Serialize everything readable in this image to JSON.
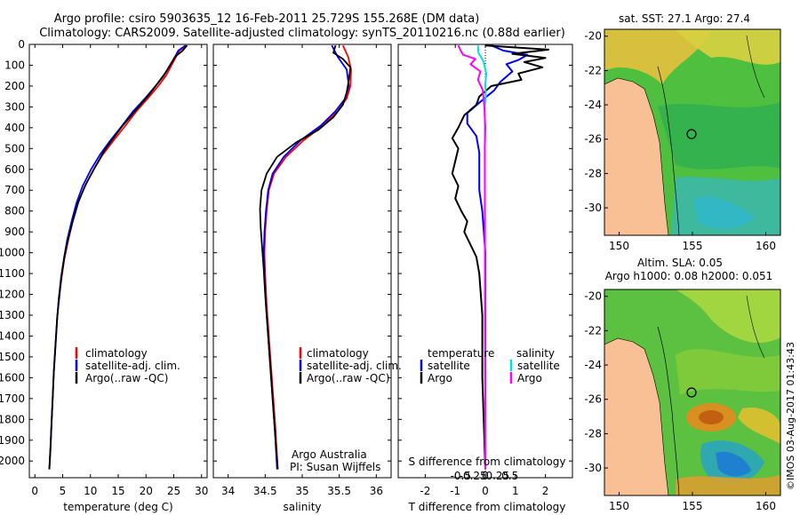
{
  "header": {
    "line1": "Argo profile: csiro 5903635_12 16-Feb-2011 25.729S 155.268E (DM data)",
    "line2": "Climatology: CARS2009. Satellite-adjusted climatology: synTS_20110216.nc (0.88d earlier)"
  },
  "colors": {
    "climatology": "#ff0000",
    "satellite": "#0000ff",
    "argo": "#000000",
    "sal_sat": "#00e0e0",
    "sal_argo": "#ff00ff",
    "land": "#f9c095"
  },
  "chart_data": [
    {
      "type": "line",
      "id": "temperature",
      "xlabel": "temperature (deg C)",
      "ylabel": "",
      "xlim": [
        -1,
        31
      ],
      "ylim": [
        2080,
        0
      ],
      "xticks": [
        "0",
        "5",
        "10",
        "15",
        "20",
        "25",
        "30"
      ],
      "xtick_values": [
        0,
        5,
        10,
        15,
        20,
        25,
        30
      ],
      "yticks": [
        "0",
        "100",
        "200",
        "300",
        "400",
        "500",
        "600",
        "700",
        "800",
        "900",
        "1000",
        "1100",
        "1200",
        "1300",
        "1400",
        "1500",
        "1600",
        "1700",
        "1800",
        "1900",
        "2000"
      ],
      "ytick_values": [
        0,
        100,
        200,
        300,
        400,
        500,
        600,
        700,
        800,
        900,
        1000,
        1100,
        1200,
        1300,
        1400,
        1500,
        1600,
        1700,
        1800,
        1900,
        2000
      ],
      "legend": [
        "climatology",
        "satellite-adj. clim.",
        "Argo(..raw -QC)"
      ],
      "series": [
        {
          "name": "climatology",
          "color": "#ff0000",
          "points": [
            [
              27.3,
              5
            ],
            [
              26,
              30
            ],
            [
              25.4,
              60
            ],
            [
              24.6,
              100
            ],
            [
              23.6,
              150
            ],
            [
              22.2,
              200
            ],
            [
              20.3,
              260
            ],
            [
              18.3,
              320
            ],
            [
              16.3,
              390
            ],
            [
              14.2,
              460
            ],
            [
              12.2,
              530
            ],
            [
              10.6,
              600
            ],
            [
              9,
              680
            ],
            [
              7.8,
              760
            ],
            [
              6.8,
              850
            ],
            [
              6,
              940
            ],
            [
              5.3,
              1030
            ],
            [
              4.8,
              1120
            ],
            [
              4.3,
              1220
            ],
            [
              4,
              1320
            ],
            [
              3.7,
              1450
            ],
            [
              3.4,
              1580
            ],
            [
              3.2,
              1700
            ],
            [
              3,
              1820
            ],
            [
              2.8,
              1940
            ],
            [
              2.6,
              2040
            ]
          ]
        },
        {
          "name": "satellite",
          "color": "#0000ff",
          "points": [
            [
              27.1,
              5
            ],
            [
              25.8,
              30
            ],
            [
              25.2,
              60
            ],
            [
              24.3,
              100
            ],
            [
              23.2,
              150
            ],
            [
              21.7,
              200
            ],
            [
              19.8,
              260
            ],
            [
              17.7,
              320
            ],
            [
              15.7,
              390
            ],
            [
              13.6,
              460
            ],
            [
              11.7,
              530
            ],
            [
              10.1,
              600
            ],
            [
              8.6,
              680
            ],
            [
              7.5,
              760
            ],
            [
              6.6,
              850
            ],
            [
              5.8,
              940
            ],
            [
              5.2,
              1030
            ],
            [
              4.7,
              1120
            ],
            [
              4.3,
              1220
            ],
            [
              4,
              1320
            ],
            [
              3.7,
              1450
            ],
            [
              3.4,
              1580
            ],
            [
              3.2,
              1700
            ],
            [
              3,
              1820
            ],
            [
              2.8,
              1940
            ],
            [
              2.6,
              2040
            ]
          ]
        },
        {
          "name": "Argo",
          "color": "#000000",
          "points": [
            [
              27.4,
              5
            ],
            [
              26.6,
              30
            ],
            [
              25.2,
              60
            ],
            [
              24.6,
              90
            ],
            [
              23.4,
              140
            ],
            [
              22.3,
              180
            ],
            [
              20.6,
              240
            ],
            [
              19,
              290
            ],
            [
              17.4,
              340
            ],
            [
              15.8,
              390
            ],
            [
              14.4,
              440
            ],
            [
              12.5,
              510
            ],
            [
              10.8,
              590
            ],
            [
              9.2,
              670
            ],
            [
              7.9,
              750
            ],
            [
              6.9,
              840
            ],
            [
              6,
              930
            ],
            [
              5.3,
              1020
            ],
            [
              4.8,
              1110
            ],
            [
              4.4,
              1210
            ],
            [
              4,
              1310
            ],
            [
              3.7,
              1440
            ],
            [
              3.4,
              1570
            ],
            [
              3.2,
              1690
            ],
            [
              3,
              1810
            ],
            [
              2.8,
              1930
            ],
            [
              2.6,
              2040
            ]
          ]
        }
      ]
    },
    {
      "type": "line",
      "id": "salinity",
      "xlabel": "salinity",
      "xlim": [
        33.8,
        36.2
      ],
      "ylim": [
        2080,
        0
      ],
      "xticks": [
        "34",
        "34.5",
        "35",
        "35.5",
        "36"
      ],
      "xtick_values": [
        34,
        34.5,
        35,
        35.5,
        36
      ],
      "legend": [
        "climatology",
        "satellite-adj. clim.",
        "Argo(..raw -QC)"
      ],
      "annotations": [
        "Argo Australia",
        "PI: Susan Wijffels"
      ],
      "series": [
        {
          "name": "climatology",
          "color": "#ff0000",
          "points": [
            [
              35.55,
              5
            ],
            [
              35.62,
              60
            ],
            [
              35.66,
              120
            ],
            [
              35.65,
              200
            ],
            [
              35.6,
              260
            ],
            [
              35.48,
              320
            ],
            [
              35.28,
              390
            ],
            [
              35.02,
              460
            ],
            [
              34.78,
              540
            ],
            [
              34.62,
              620
            ],
            [
              34.55,
              700
            ],
            [
              34.52,
              800
            ],
            [
              34.5,
              900
            ],
            [
              34.49,
              1000
            ],
            [
              34.5,
              1100
            ],
            [
              34.52,
              1250
            ],
            [
              34.55,
              1400
            ],
            [
              34.58,
              1550
            ],
            [
              34.61,
              1700
            ],
            [
              34.64,
              1850
            ],
            [
              34.67,
              2040
            ]
          ]
        },
        {
          "name": "satellite",
          "color": "#0000ff",
          "points": [
            [
              35.4,
              5
            ],
            [
              35.48,
              60
            ],
            [
              35.6,
              120
            ],
            [
              35.63,
              200
            ],
            [
              35.58,
              260
            ],
            [
              35.45,
              320
            ],
            [
              35.25,
              390
            ],
            [
              34.98,
              460
            ],
            [
              34.75,
              540
            ],
            [
              34.6,
              620
            ],
            [
              34.54,
              700
            ],
            [
              34.51,
              800
            ],
            [
              34.49,
              900
            ],
            [
              34.48,
              1000
            ],
            [
              34.49,
              1100
            ],
            [
              34.51,
              1250
            ],
            [
              34.54,
              1400
            ],
            [
              34.57,
              1550
            ],
            [
              34.6,
              1700
            ],
            [
              34.63,
              1850
            ],
            [
              34.66,
              2040
            ]
          ]
        },
        {
          "name": "Argo",
          "color": "#000000",
          "points": [
            [
              35.45,
              5
            ],
            [
              35.42,
              40
            ],
            [
              35.55,
              70
            ],
            [
              35.65,
              110
            ],
            [
              35.63,
              170
            ],
            [
              35.6,
              230
            ],
            [
              35.55,
              290
            ],
            [
              35.42,
              350
            ],
            [
              35.22,
              410
            ],
            [
              34.92,
              470
            ],
            [
              34.66,
              540
            ],
            [
              34.52,
              620
            ],
            [
              34.45,
              700
            ],
            [
              34.43,
              790
            ],
            [
              34.44,
              880
            ],
            [
              34.46,
              980
            ],
            [
              34.48,
              1080
            ],
            [
              34.5,
              1200
            ],
            [
              34.53,
              1350
            ],
            [
              34.56,
              1500
            ],
            [
              34.59,
              1650
            ],
            [
              34.62,
              1800
            ],
            [
              34.65,
              1950
            ],
            [
              34.67,
              2040
            ]
          ]
        }
      ]
    },
    {
      "type": "line",
      "id": "difference",
      "xlabel": "T difference from climatology",
      "xlabel_top": "S difference from climatology",
      "xlim": [
        -2.9,
        2.9
      ],
      "ylim": [
        2080,
        0
      ],
      "xticks": [
        "-2",
        "-1",
        "0",
        "1",
        "2"
      ],
      "xtick_values": [
        -2,
        -1,
        0,
        1,
        2
      ],
      "s_xticks": [
        "-0.5",
        "-0.25",
        "0",
        "0.25",
        "0.5"
      ],
      "s_xtick_values": [
        -0.5,
        -0.25,
        0,
        0.25,
        0.5
      ],
      "legend_temperature": [
        "temperature",
        "satellite",
        "Argo"
      ],
      "legend_salinity": [
        "salinity",
        "satellite",
        "Argo"
      ],
      "series": [
        {
          "name": "T satellite",
          "color": "#0000ff",
          "points": [
            [
              0.2,
              5
            ],
            [
              0.6,
              30
            ],
            [
              1.4,
              50
            ],
            [
              1.1,
              75
            ],
            [
              0.7,
              95
            ],
            [
              0.9,
              130
            ],
            [
              0.5,
              180
            ],
            [
              0.3,
              220
            ],
            [
              -0.2,
              280
            ],
            [
              -0.6,
              330
            ],
            [
              -0.6,
              380
            ],
            [
              -0.3,
              440
            ],
            [
              -0.2,
              520
            ],
            [
              -0.2,
              600
            ],
            [
              -0.2,
              700
            ],
            [
              -0.1,
              800
            ],
            [
              -0.05,
              900
            ],
            [
              0,
              1000
            ],
            [
              0,
              2040
            ]
          ]
        },
        {
          "name": "T Argo",
          "color": "#000000",
          "points": [
            [
              0,
              5
            ],
            [
              2.1,
              25
            ],
            [
              0.9,
              45
            ],
            [
              2.0,
              65
            ],
            [
              1.3,
              85
            ],
            [
              1.9,
              110
            ],
            [
              1.1,
              140
            ],
            [
              1.2,
              170
            ],
            [
              0.2,
              200
            ],
            [
              -0.2,
              250
            ],
            [
              -0.3,
              290
            ],
            [
              -0.7,
              340
            ],
            [
              -0.9,
              400
            ],
            [
              -1.1,
              450
            ],
            [
              -0.9,
              500
            ],
            [
              -1.0,
              560
            ],
            [
              -1.1,
              620
            ],
            [
              -0.9,
              680
            ],
            [
              -1.0,
              740
            ],
            [
              -0.8,
              800
            ],
            [
              -0.6,
              850
            ],
            [
              -0.7,
              900
            ],
            [
              -0.5,
              960
            ],
            [
              -0.3,
              1020
            ],
            [
              -0.2,
              1100
            ],
            [
              -0.1,
              1300
            ],
            [
              -0.1,
              1600
            ],
            [
              0,
              2040
            ]
          ]
        },
        {
          "name": "S satellite",
          "color": "#00e0e0",
          "points": [
            [
              -0.15,
              5
            ],
            [
              -0.14,
              40
            ],
            [
              -0.04,
              80
            ],
            [
              0.02,
              140
            ],
            [
              0,
              190
            ],
            [
              0.01,
              250
            ],
            [
              -0.01,
              300
            ],
            [
              0,
              2040
            ]
          ]
        },
        {
          "name": "S Argo",
          "color": "#ff00ff",
          "points": [
            [
              -0.55,
              5
            ],
            [
              -0.5,
              30
            ],
            [
              -0.45,
              50
            ],
            [
              -0.2,
              70
            ],
            [
              -0.3,
              95
            ],
            [
              -0.1,
              130
            ],
            [
              -0.15,
              170
            ],
            [
              -0.05,
              220
            ],
            [
              -0.02,
              300
            ],
            [
              0,
              400
            ],
            [
              -0.01,
              500
            ],
            [
              0,
              2040
            ]
          ]
        }
      ]
    }
  ],
  "maps": {
    "top": {
      "title": "sat. SST: 27.1  Argo: 27.4",
      "xticks": [
        "150",
        "155",
        "160"
      ],
      "yticks": [
        "-20",
        "-22",
        "-24",
        "-26",
        "-28",
        "-30"
      ]
    },
    "bottom": {
      "title1": "Altim. SLA: 0.05",
      "title2": "Argo h1000: 0.08 h2000: 0.051",
      "xticks": [
        "150",
        "155",
        "160"
      ],
      "yticks": [
        "-20",
        "-22",
        "-24",
        "-26",
        "-28",
        "-30"
      ]
    }
  },
  "watermark": "©IMOS 03-Aug-2017 01:43:43"
}
